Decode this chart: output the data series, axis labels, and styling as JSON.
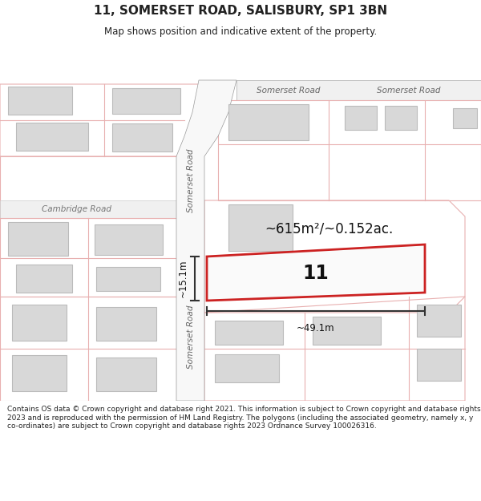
{
  "title": "11, SOMERSET ROAD, SALISBURY, SP1 3BN",
  "subtitle": "Map shows position and indicative extent of the property.",
  "footer": "Contains OS data © Crown copyright and database right 2021. This information is subject to Crown copyright and database rights 2023 and is reproduced with the permission of HM Land Registry. The polygons (including the associated geometry, namely x, y co-ordinates) are subject to Crown copyright and database rights 2023 Ordnance Survey 100026316.",
  "area_text": "~615m²/~0.152ac.",
  "label_11": "11",
  "dim_width": "~49.1m",
  "dim_height": "~15.1m",
  "road_label_top1": "Somerset Road",
  "road_label_top2": "Somerset Road",
  "road_label_left": "Cambridge Road",
  "road_label_vert1": "Somerset Road",
  "road_label_vert2": "Somerset Road",
  "bg_color": "#ffffff",
  "map_bg": "#ffffff",
  "plot_red": "#cc2222",
  "plot_pink": "#e8b0b0",
  "building_fill": "#d8d8d8",
  "building_edge": "#bbbbbb",
  "road_fill": "#ffffff",
  "dim_color": "#333333",
  "text_color": "#222222"
}
